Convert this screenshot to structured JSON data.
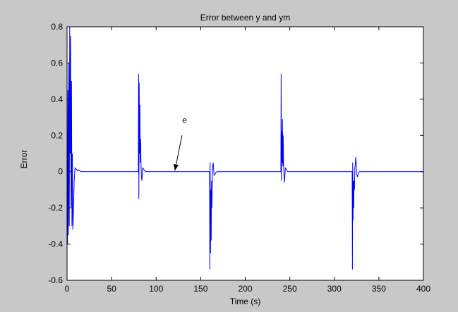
{
  "figure": {
    "background": "#c8c8c8",
    "axes_background": "#ffffff",
    "line_color": "#0000ff"
  },
  "chart_data": {
    "type": "line",
    "title": "Error between y and ym",
    "xlabel": "Time (s)",
    "ylabel": "Error",
    "xlim": [
      0,
      400
    ],
    "ylim": [
      -0.6,
      0.8
    ],
    "xticks": [
      0,
      50,
      100,
      150,
      200,
      250,
      300,
      350,
      400
    ],
    "xtick_labels": [
      "0",
      "50",
      "100",
      "150",
      "200",
      "250",
      "300",
      "350",
      "400"
    ],
    "yticks": [
      -0.6,
      -0.4,
      -0.2,
      0,
      0.2,
      0.4,
      0.6,
      0.8
    ],
    "ytick_labels": [
      "-0.6",
      "-0.4",
      "-0.2",
      "0",
      "0.2",
      "0.4",
      "0.6",
      "0.8"
    ],
    "grid": false,
    "series": [
      {
        "name": "e",
        "x": [
          0,
          0.5,
          1,
          1.5,
          2,
          2.5,
          3,
          3.5,
          4,
          4.5,
          5,
          5.5,
          6,
          6.5,
          7,
          7.5,
          8,
          9,
          10,
          11,
          12,
          13,
          14,
          16,
          18,
          20,
          80,
          80.3,
          80.6,
          81,
          81.4,
          81.8,
          82.2,
          82.6,
          83,
          83.5,
          84,
          84.5,
          85,
          86,
          87,
          88,
          90,
          92,
          160,
          160.3,
          160.6,
          161,
          161.4,
          161.8,
          162.2,
          162.6,
          163,
          163.5,
          164,
          164.5,
          165,
          166,
          167,
          168,
          170,
          172,
          240,
          240.3,
          240.6,
          241,
          241.4,
          241.8,
          242.2,
          242.6,
          243,
          243.5,
          244,
          244.5,
          245,
          246,
          247,
          248,
          250,
          252,
          320,
          320.3,
          320.6,
          321,
          321.4,
          321.8,
          322.2,
          322.6,
          323,
          323.5,
          324,
          324.5,
          325,
          326,
          327,
          328,
          330,
          332,
          400
        ],
        "y": [
          0,
          -0.4,
          0.45,
          -0.35,
          0.6,
          -0.3,
          0.8,
          0.1,
          0.75,
          -0.2,
          0.5,
          -0.3,
          0.1,
          -0.32,
          -0.25,
          -0.15,
          -0.05,
          0.02,
          0.015,
          0.01,
          0.005,
          0.01,
          0.005,
          0,
          0,
          0,
          0,
          0.54,
          -0.15,
          0.49,
          0.1,
          0.37,
          0.05,
          0.18,
          0.05,
          -0.03,
          -0.05,
          -0.02,
          0.02,
          0.015,
          0.005,
          0,
          0,
          0,
          0,
          -0.54,
          0.05,
          -0.45,
          -0.1,
          -0.38,
          -0.05,
          -0.2,
          -0.05,
          0.03,
          0.05,
          0.02,
          -0.02,
          -0.015,
          -0.005,
          0,
          0,
          0,
          0,
          0.54,
          -0.05,
          0.22,
          0.05,
          0.29,
          0.03,
          0.2,
          0.05,
          -0.02,
          -0.06,
          -0.02,
          0.02,
          0.015,
          0.005,
          0,
          0,
          0,
          0,
          -0.54,
          0.05,
          -0.27,
          -0.05,
          -0.2,
          -0.05,
          -0.1,
          0.02,
          0.04,
          0.08,
          0.05,
          -0.01,
          -0.03,
          -0.01,
          0,
          0,
          0,
          0
        ]
      }
    ],
    "annotations": [
      {
        "text": "e",
        "text_pos": [
          132,
          0.27
        ],
        "arrow_from": [
          129,
          0.2
        ],
        "arrow_to": [
          121,
          0.005
        ]
      }
    ]
  }
}
